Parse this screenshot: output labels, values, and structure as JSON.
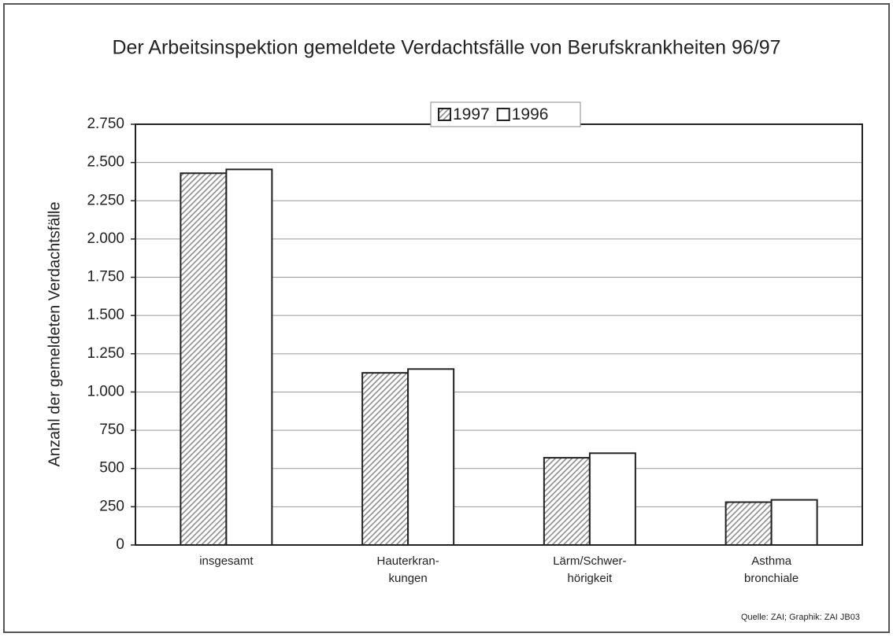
{
  "chart_data": {
    "type": "bar",
    "title": "Der Arbeitsinspektion gemeldete Verdachtsfälle von Berufskrankheiten 96/97",
    "y_label": "Anzahl der gemeldeten Verdachtsfälle",
    "source": "Quelle: ZAI; Graphik: ZAI JB03",
    "categories": [
      "insgesamt",
      "Hauterkran-\nkungen",
      "Lärm/Schwer-\nhörigkeit",
      "Asthma\nbronchiale"
    ],
    "series": [
      {
        "name": "1997",
        "color": "#8c8c8c",
        "pattern": "hatch",
        "values": [
          2430,
          1125,
          570,
          280
        ]
      },
      {
        "name": "1996",
        "color": "#ffffff",
        "values": [
          2455,
          1150,
          600,
          295
        ]
      }
    ],
    "ylim": [
      0,
      2750
    ],
    "yticks": [
      0,
      250,
      500,
      750,
      {
        "value": 1000,
        "label": "1.000"
      },
      {
        "value": 1250,
        "label": "1.250"
      },
      {
        "value": 1500,
        "label": "1.500"
      },
      {
        "value": 1750,
        "label": "1.750"
      },
      {
        "value": 2000,
        "label": "2.000"
      },
      {
        "value": 2250,
        "label": "2.250"
      },
      {
        "value": 2500,
        "label": "2.500"
      },
      {
        "value": 2750,
        "label": "2.750"
      }
    ],
    "grid": true,
    "legend": "top"
  }
}
